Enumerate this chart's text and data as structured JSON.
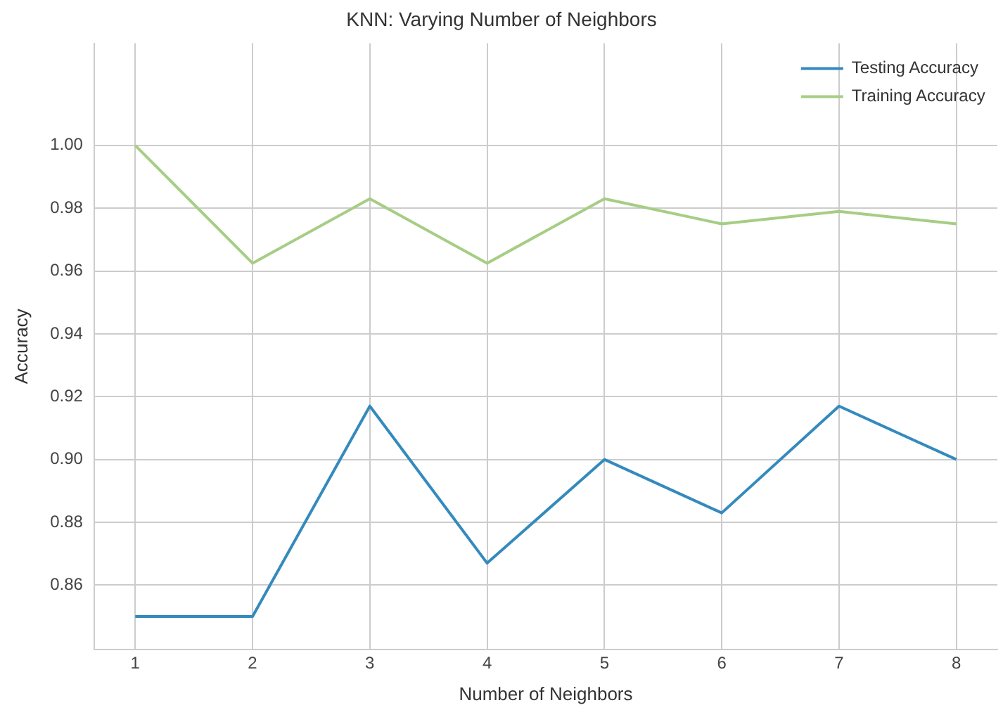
{
  "chart_data": {
    "type": "line",
    "title": "KNN: Varying Number of Neighbors",
    "xlabel": "Number of Neighbors",
    "ylabel": "Accuracy",
    "x": [
      1,
      2,
      3,
      4,
      5,
      6,
      7,
      8
    ],
    "series": [
      {
        "name": "Testing Accuracy",
        "color": "#348abd",
        "values": [
          0.85,
          0.85,
          0.917,
          0.867,
          0.9,
          0.883,
          0.917,
          0.9
        ]
      },
      {
        "name": "Training Accuracy",
        "color": "#a6cd84",
        "values": [
          1.0,
          0.9625,
          0.983,
          0.9625,
          0.983,
          0.975,
          0.979,
          0.975
        ]
      }
    ],
    "xlim": [
      0.65,
      8.35
    ],
    "xticks": [
      1,
      2,
      3,
      4,
      5,
      6,
      7,
      8
    ],
    "ylim": [
      0.8395,
      1.0325
    ],
    "yticks": [
      {
        "value": 0.86,
        "label": "0.86"
      },
      {
        "value": 0.88,
        "label": "0.88"
      },
      {
        "value": 0.9,
        "label": "0.90"
      },
      {
        "value": 0.92,
        "label": "0.92"
      },
      {
        "value": 0.94,
        "label": "0.94"
      },
      {
        "value": 0.96,
        "label": "0.96"
      },
      {
        "value": 0.98,
        "label": "0.98"
      },
      {
        "value": 1.0,
        "label": "1.00"
      }
    ],
    "grid": true,
    "legend": "top right",
    "marker": "none",
    "line_style": "solid"
  }
}
